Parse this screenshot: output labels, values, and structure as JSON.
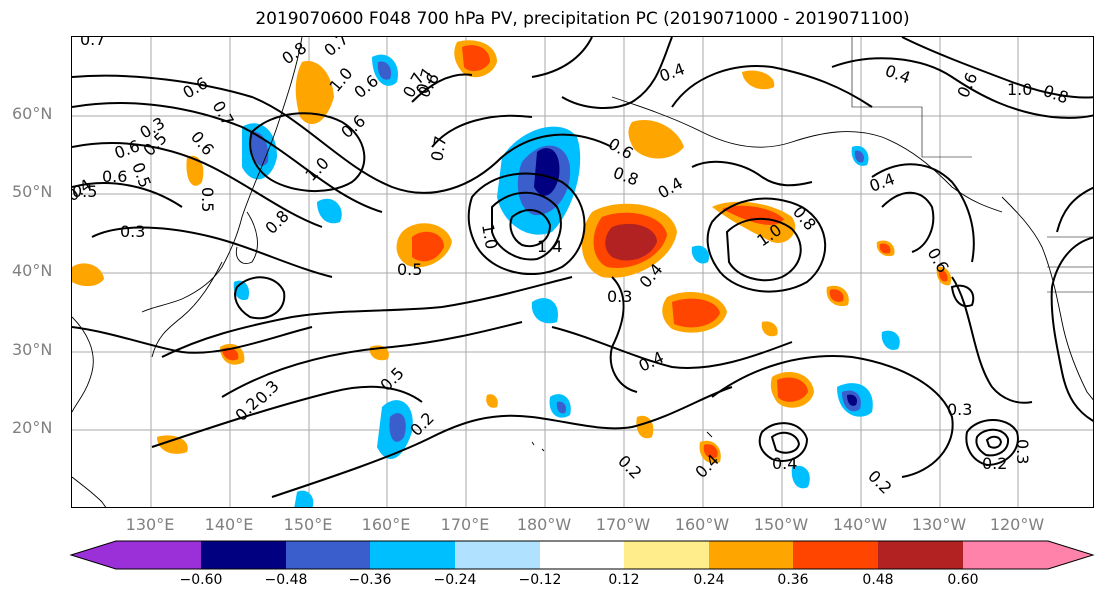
{
  "title": "2019070600 F048 700 hPa PV, precipitation PC (2019071000 - 2019071100)",
  "lat_labels": [
    "60°N",
    "50°N",
    "40°N",
    "30°N",
    "20°N"
  ],
  "lon_labels": [
    "130°E",
    "140°E",
    "150°E",
    "160°E",
    "170°E",
    "180°W",
    "170°W",
    "160°W",
    "150°W",
    "140°W",
    "130°W",
    "120°W"
  ],
  "colorbar": {
    "ticks": [
      "−0.60",
      "−0.48",
      "−0.36",
      "−0.24",
      "−0.12",
      "0.12",
      "0.24",
      "0.36",
      "0.48",
      "0.60"
    ],
    "colors": [
      "#9b30d9",
      "#000080",
      "#3a5fcd",
      "#00bfff",
      "#b0e2ff",
      "#ffffff",
      "#ffec8b",
      "#ffa500",
      "#ff4500",
      "#b22222",
      "#ff82ab"
    ]
  },
  "contour_labels": [
    "0.7",
    "0.8",
    "0.7",
    "0.6",
    "0.7",
    "0.6",
    "0.5",
    "0.4",
    "0.3",
    "0.5",
    "0.6",
    "0.5",
    "1.0",
    "0.6",
    "0.6",
    "1.0",
    "0.7",
    "0.6",
    "0.8",
    "0.7",
    "0.4",
    "0.4",
    "0.7",
    "0.6",
    "0.4",
    "1.0",
    "0.8",
    "0.6",
    "0.4",
    "0.3",
    "0.6",
    "0.5",
    "1.0",
    "1.4",
    "0.3",
    "0.4",
    "0.8",
    "1.0",
    "0.6",
    "0.8",
    "0.5",
    "0.3",
    "0.2",
    "0.4",
    "0.5",
    "0.2",
    "0.2",
    "0.4",
    "0.3",
    "0.2",
    "0.4",
    "0.2",
    "0.3"
  ]
}
